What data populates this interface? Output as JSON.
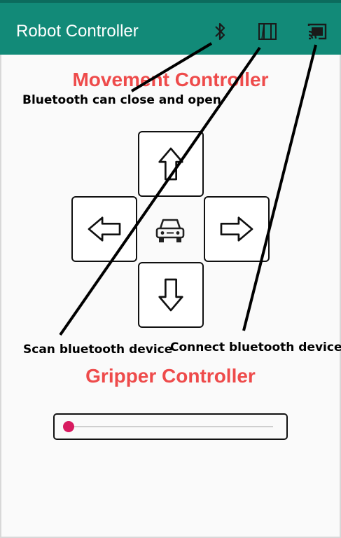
{
  "toolbar": {
    "title": "Robot Controller",
    "background_color": "#128a78",
    "icons": [
      {
        "name": "bluetooth-icon"
      },
      {
        "name": "scan-devices-icon"
      },
      {
        "name": "cast-connect-icon"
      }
    ]
  },
  "movement": {
    "title": "Movement Controller",
    "buttons": [
      {
        "name": "forward-button",
        "icon": "arrow-up-icon"
      },
      {
        "name": "left-button",
        "icon": "arrow-left-icon"
      },
      {
        "name": "right-button",
        "icon": "arrow-right-icon"
      },
      {
        "name": "backward-button",
        "icon": "arrow-down-icon"
      }
    ],
    "center_icon": "car-icon"
  },
  "gripper": {
    "title": "Gripper Controller",
    "slider_value": 0,
    "slider_color": "#d81b60"
  },
  "annotations": {
    "bluetooth": "Bluetooth can close and open",
    "scan": "Scan bluetooth device",
    "connect": "Connect bluetooth device"
  },
  "accent_color": "#ee4b4b"
}
